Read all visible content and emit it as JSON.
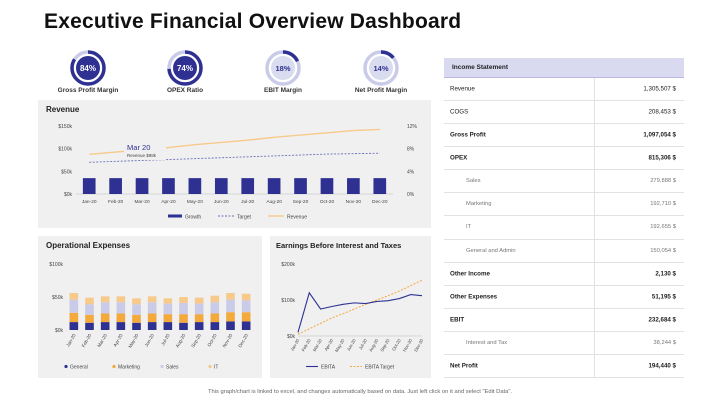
{
  "page": {
    "title": "Executive Financial Overview Dashboard",
    "footer": "This graph/chart is linked to excel, and changes automatically based on data. Just left click on it and select \"Edit Data\"."
  },
  "colors": {
    "navy": "#2e3192",
    "light_purple": "#c9cbe8",
    "orange": "#f4a93b",
    "peach": "#f7c98b",
    "gray_bg": "#f0f0f0",
    "slate": "#6b7b8c"
  },
  "gauges": [
    {
      "value_label": "84%",
      "value": 0.84,
      "label": "Gross Profit Margin"
    },
    {
      "value_label": "74%",
      "value": 0.74,
      "label": "OPEX Ratio"
    },
    {
      "value_label": "18%",
      "value": 0.18,
      "label": "EBIT Margin"
    },
    {
      "value_label": "14%",
      "value": 0.14,
      "label": "Net Profit Margin"
    }
  ],
  "income_statement": {
    "header": "Income Statement",
    "rows": [
      {
        "label": "Revenue",
        "value": "1,305,507 $",
        "style": "main"
      },
      {
        "label": "COGS",
        "value": "208,453 $",
        "style": "main"
      },
      {
        "label": "Gross Profit",
        "value": "1,097,054 $",
        "style": "bold"
      },
      {
        "label": "OPEX",
        "value": "815,306 $",
        "style": "bold"
      },
      {
        "label": "Sales",
        "value": "279,888 $",
        "style": "sub"
      },
      {
        "label": "Marketing",
        "value": "192,710 $",
        "style": "sub"
      },
      {
        "label": "IT",
        "value": "192,655 $",
        "style": "sub"
      },
      {
        "label": "General and Admin",
        "value": "150,054 $",
        "style": "sub"
      },
      {
        "label": "Other Income",
        "value": "2,130 $",
        "style": "bold"
      },
      {
        "label": "Other Expenses",
        "value": "51,195 $",
        "style": "bold"
      },
      {
        "label": "EBIT",
        "value": "232,684 $",
        "style": "bold"
      },
      {
        "label": "Interest and Tax",
        "value": "38,244 $",
        "style": "sub"
      },
      {
        "label": "Net Profit",
        "value": "194,440 $",
        "style": "bold"
      }
    ]
  },
  "chart_data": [
    {
      "type": "bar",
      "title": "Revenue",
      "categories": [
        "Jan-20",
        "Feb-20",
        "Mar-20",
        "Apr-20",
        "May-20",
        "Jun-20",
        "Jul-20",
        "Aug-20",
        "Sep-20",
        "Oct-20",
        "Nov-20",
        "Dec-20"
      ],
      "y_ticks": [
        "$0k",
        "$50k",
        "$100k",
        "$150k"
      ],
      "y2_ticks": [
        "0%",
        "4%",
        "8%",
        "12%"
      ],
      "ylim": [
        0,
        150
      ],
      "y2lim": [
        0,
        12
      ],
      "series": [
        {
          "name": "Growth",
          "kind": "bar",
          "axis": "y",
          "values": [
            35,
            35,
            35,
            35,
            35,
            35,
            35,
            35,
            35,
            35,
            35,
            35
          ]
        },
        {
          "name": "Target",
          "kind": "line-dashed",
          "axis": "y",
          "values": [
            70,
            72,
            74,
            76,
            78,
            80,
            82,
            84,
            86,
            88,
            89,
            90
          ]
        },
        {
          "name": "Revenue",
          "kind": "line",
          "axis": "y2",
          "values": [
            7.0,
            7.4,
            7.8,
            8.2,
            8.7,
            9.1,
            9.5,
            10.0,
            10.4,
            10.8,
            11.2,
            11.4
          ]
        }
      ],
      "tooltip": {
        "title": "Mar 20",
        "subtitle": "Revenue $98k"
      },
      "legend": "bottom"
    },
    {
      "type": "bar",
      "stacked": true,
      "title": "Operational Expenses",
      "categories": [
        "Jan-20",
        "Feb-20",
        "Mar-20",
        "Apr-20",
        "May-20",
        "Jun-20",
        "Jul-20",
        "Aug-20",
        "Sep-20",
        "Oct-20",
        "Nov-20",
        "Dec-20"
      ],
      "y_ticks": [
        "$0k",
        "$50k",
        "$100k"
      ],
      "ylim": [
        0,
        100
      ],
      "series": [
        {
          "name": "General",
          "values": [
            12,
            11,
            12,
            12,
            11,
            12,
            12,
            11,
            12,
            12,
            13,
            13
          ]
        },
        {
          "name": "Marketing",
          "values": [
            14,
            12,
            13,
            13,
            12,
            13,
            12,
            13,
            12,
            13,
            14,
            14
          ]
        },
        {
          "name": "Sales",
          "values": [
            20,
            16,
            17,
            17,
            16,
            17,
            16,
            17,
            16,
            17,
            19,
            18
          ]
        },
        {
          "name": "IT",
          "values": [
            10,
            10,
            9,
            9,
            9,
            9,
            8,
            9,
            9,
            10,
            10,
            10
          ]
        }
      ],
      "legend": "bottom"
    },
    {
      "type": "line",
      "title": "Earnings Before Interest and Taxes",
      "categories": [
        "Jan-20",
        "Feb-20",
        "Mar-20",
        "Apr-20",
        "May-20",
        "Jun-20",
        "Jul-20",
        "Aug-20",
        "Sep-20",
        "Oct-20",
        "Nov-20",
        "Dec-20"
      ],
      "y_ticks": [
        "$0k",
        "$100k",
        "$200k"
      ],
      "ylim": [
        0,
        200
      ],
      "series": [
        {
          "name": "EBITA",
          "kind": "line",
          "values": [
            10,
            120,
            75,
            82,
            88,
            92,
            90,
            96,
            98,
            104,
            115,
            112
          ]
        },
        {
          "name": "EBITA Target",
          "kind": "line-dashed",
          "values": [
            5,
            20,
            35,
            50,
            62,
            75,
            88,
            100,
            112,
            125,
            140,
            155
          ]
        }
      ],
      "legend": "bottom"
    }
  ]
}
